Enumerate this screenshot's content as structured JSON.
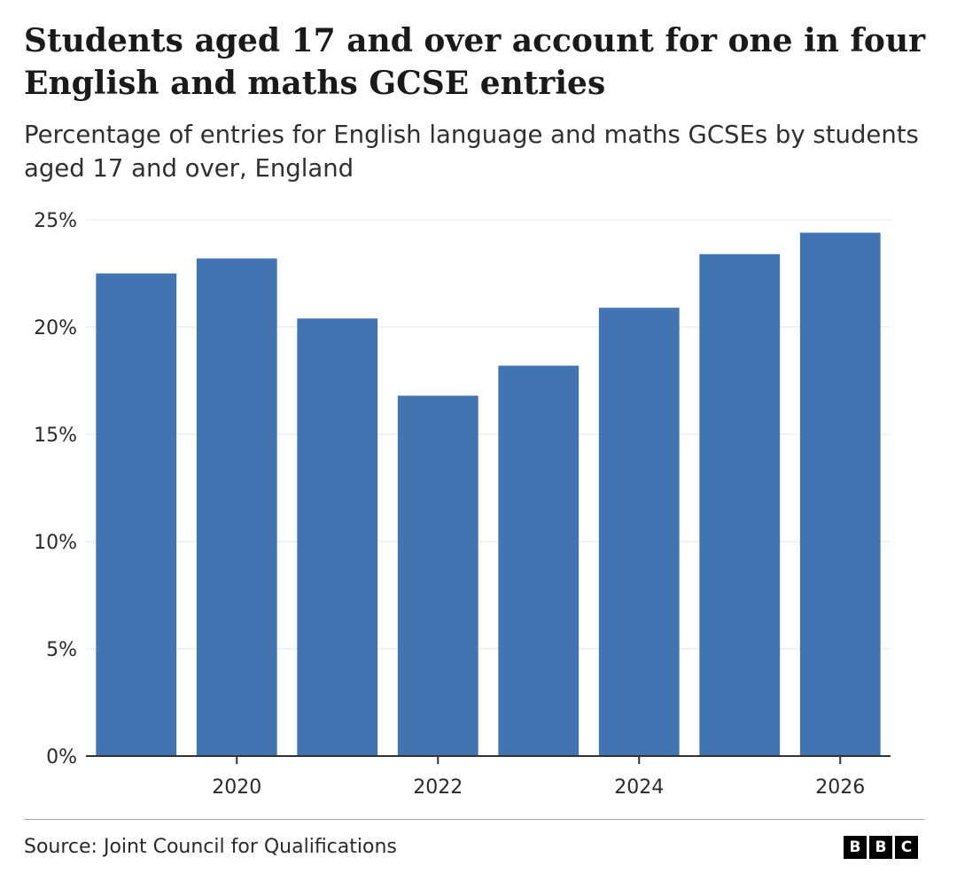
{
  "chart_data": {
    "type": "bar",
    "title": "Students aged 17 and over account for one in four English and maths GCSE entries",
    "subtitle": "Percentage of entries for English language and maths GCSEs by students aged 17 and over, England",
    "x": [
      2019,
      2020,
      2021,
      2022,
      2023,
      2024,
      2025,
      2026
    ],
    "xticks": [
      "2020",
      "2022",
      "2024",
      "2026"
    ],
    "values": [
      22.5,
      23.2,
      20.4,
      16.8,
      18.2,
      20.9,
      23.4,
      24.4
    ],
    "yticks": [
      "0%",
      "5%",
      "10%",
      "15%",
      "20%",
      "25%"
    ],
    "ylim": [
      0,
      25
    ],
    "grid": true,
    "bar_color": "#4174B1"
  },
  "footer": {
    "source": "Source: Joint Council for Qualifications",
    "logo": [
      "B",
      "B",
      "C"
    ]
  }
}
